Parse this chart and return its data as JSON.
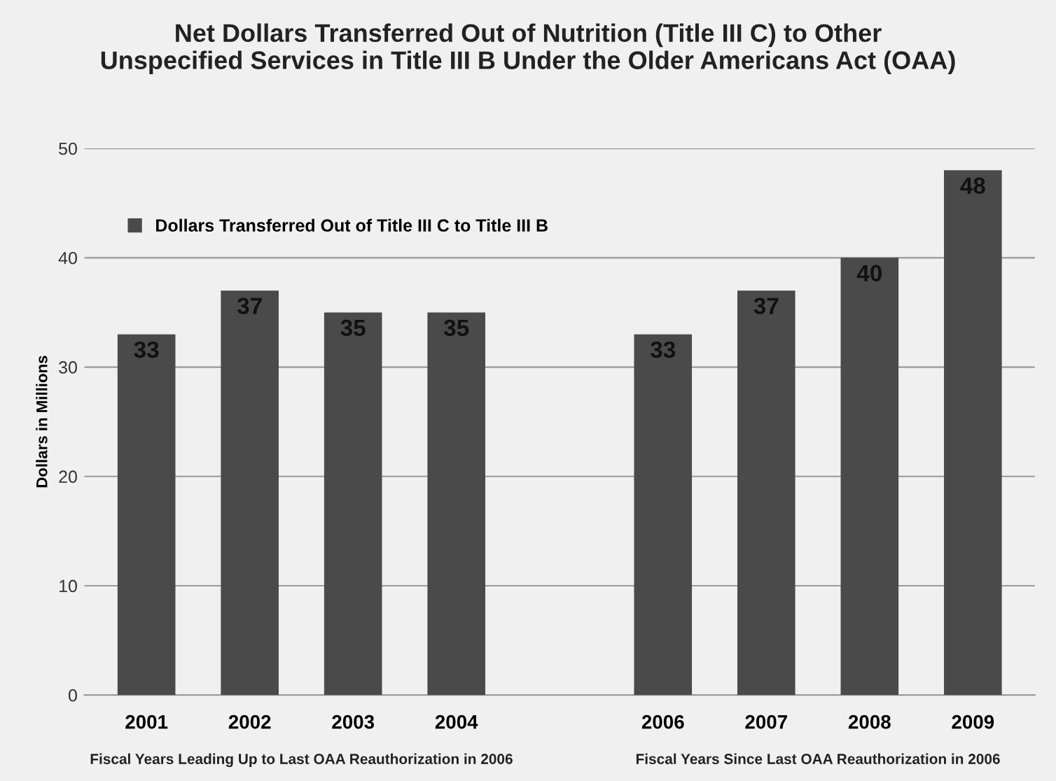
{
  "chart_data": {
    "type": "bar",
    "title": "Net Dollars Transferred Out of Nutrition (Title III C) to Other\nUnspecified Services in Title III B Under the Older Americans Act (OAA)",
    "ylabel": "Dollars in Millions",
    "categories": [
      "2001",
      "2002",
      "2003",
      "2004",
      null,
      "2006",
      "2007",
      "2008",
      "2009"
    ],
    "series": [
      {
        "name": "Dollars Transferred Out of Title III C to Title III B",
        "color": "#4a4a4a",
        "values": [
          33,
          37,
          35,
          35,
          null,
          33,
          37,
          40,
          48
        ]
      }
    ],
    "ylim": [
      0,
      50
    ],
    "yticks": [
      0,
      10,
      20,
      30,
      40,
      50
    ],
    "grid": "y",
    "legend": "top left",
    "data_labels": true,
    "annotations": [
      "Fiscal Years Leading Up to Last OAA Reauthorization in 2006",
      "Fiscal Years Since Last OAA Reauthorization in 2006"
    ]
  }
}
